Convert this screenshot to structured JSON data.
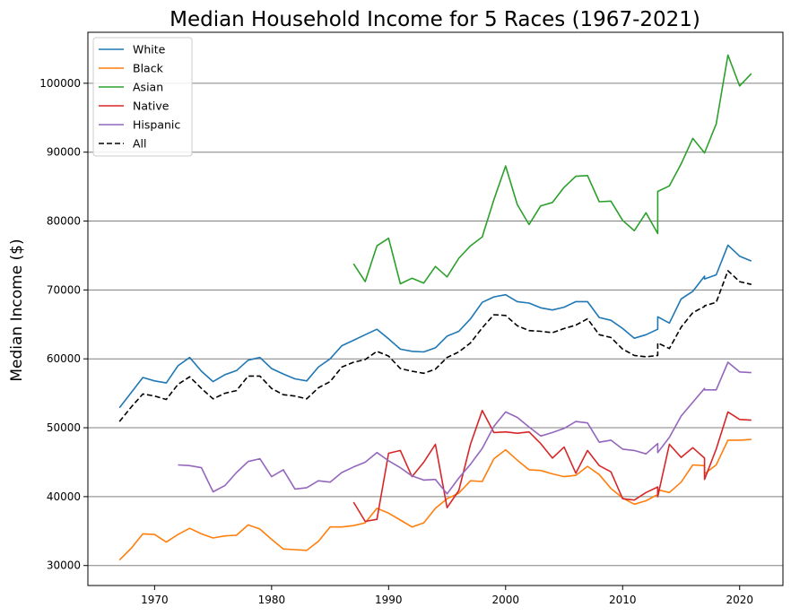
{
  "chart_data": {
    "type": "line",
    "title": "Median Household Income for 5 Races (1967-2021)",
    "xlabel": "",
    "ylabel": "Median Income ($)",
    "xlim": [
      1964.3,
      2023.7
    ],
    "ylim": [
      27100,
      107400
    ],
    "x_ticks": [
      1970,
      1980,
      1990,
      2000,
      2010,
      2020
    ],
    "y_ticks": [
      30000,
      40000,
      50000,
      60000,
      70000,
      80000,
      90000,
      100000
    ],
    "grid": "horizontal",
    "legend_position": "top-left",
    "series": [
      {
        "name": "White",
        "color": "#1f77b4",
        "dash": "solid",
        "points": [
          [
            1967,
            52900
          ],
          [
            1968,
            55100
          ],
          [
            1969,
            57300
          ],
          [
            1970,
            56800
          ],
          [
            1971,
            56500
          ],
          [
            1972,
            59000
          ],
          [
            1973,
            60200
          ],
          [
            1974,
            58200
          ],
          [
            1975,
            56700
          ],
          [
            1976,
            57700
          ],
          [
            1977,
            58300
          ],
          [
            1978,
            59800
          ],
          [
            1979,
            60200
          ],
          [
            1980,
            58600
          ],
          [
            1981,
            57800
          ],
          [
            1982,
            57100
          ],
          [
            1983,
            56800
          ],
          [
            1984,
            58800
          ],
          [
            1985,
            60000
          ],
          [
            1986,
            61900
          ],
          [
            1987,
            62700
          ],
          [
            1988,
            63500
          ],
          [
            1989,
            64300
          ],
          [
            1990,
            62900
          ],
          [
            1991,
            61400
          ],
          [
            1992,
            61100
          ],
          [
            1993,
            61000
          ],
          [
            1994,
            61600
          ],
          [
            1995,
            63300
          ],
          [
            1996,
            64000
          ],
          [
            1997,
            65800
          ],
          [
            1998,
            68200
          ],
          [
            1999,
            69000
          ],
          [
            2000,
            69300
          ],
          [
            2001,
            68300
          ],
          [
            2002,
            68100
          ],
          [
            2003,
            67400
          ],
          [
            2004,
            67100
          ],
          [
            2005,
            67500
          ],
          [
            2006,
            68300
          ],
          [
            2007,
            68300
          ],
          [
            2008,
            66000
          ],
          [
            2009,
            65600
          ],
          [
            2010,
            64400
          ],
          [
            2011,
            63000
          ],
          [
            2012,
            63500
          ],
          [
            2013,
            64300
          ],
          [
            2013,
            66100
          ],
          [
            2014,
            65200
          ],
          [
            2015,
            68700
          ],
          [
            2016,
            69800
          ],
          [
            2017,
            72000
          ],
          [
            2017,
            71600
          ],
          [
            2018,
            72200
          ],
          [
            2019,
            76500
          ],
          [
            2020,
            74900
          ],
          [
            2021,
            74200
          ]
        ]
      },
      {
        "name": "Black",
        "color": "#ff7f0e",
        "dash": "solid",
        "points": [
          [
            1967,
            30800
          ],
          [
            1968,
            32500
          ],
          [
            1969,
            34600
          ],
          [
            1970,
            34500
          ],
          [
            1971,
            33400
          ],
          [
            1972,
            34500
          ],
          [
            1973,
            35400
          ],
          [
            1974,
            34600
          ],
          [
            1975,
            34000
          ],
          [
            1976,
            34300
          ],
          [
            1977,
            34400
          ],
          [
            1978,
            35900
          ],
          [
            1979,
            35300
          ],
          [
            1980,
            33800
          ],
          [
            1981,
            32400
          ],
          [
            1982,
            32300
          ],
          [
            1983,
            32200
          ],
          [
            1984,
            33500
          ],
          [
            1985,
            35600
          ],
          [
            1986,
            35600
          ],
          [
            1987,
            35800
          ],
          [
            1988,
            36200
          ],
          [
            1989,
            38300
          ],
          [
            1990,
            37600
          ],
          [
            1991,
            36600
          ],
          [
            1992,
            35600
          ],
          [
            1993,
            36200
          ],
          [
            1994,
            38300
          ],
          [
            1995,
            39700
          ],
          [
            1996,
            40500
          ],
          [
            1997,
            42300
          ],
          [
            1998,
            42200
          ],
          [
            1999,
            45500
          ],
          [
            2000,
            46800
          ],
          [
            2001,
            45300
          ],
          [
            2002,
            43900
          ],
          [
            2003,
            43800
          ],
          [
            2004,
            43300
          ],
          [
            2005,
            42900
          ],
          [
            2006,
            43100
          ],
          [
            2007,
            44400
          ],
          [
            2008,
            43200
          ],
          [
            2009,
            41200
          ],
          [
            2010,
            39800
          ],
          [
            2011,
            38900
          ],
          [
            2012,
            39400
          ],
          [
            2013,
            40300
          ],
          [
            2013,
            41000
          ],
          [
            2014,
            40600
          ],
          [
            2015,
            42100
          ],
          [
            2016,
            44600
          ],
          [
            2017,
            44500
          ],
          [
            2017,
            43300
          ],
          [
            2018,
            44600
          ],
          [
            2019,
            48200
          ],
          [
            2020,
            48200
          ],
          [
            2021,
            48300
          ]
        ]
      },
      {
        "name": "Asian",
        "color": "#2ca02c",
        "dash": "solid",
        "points": [
          [
            1987,
            73800
          ],
          [
            1988,
            71200
          ],
          [
            1989,
            76400
          ],
          [
            1990,
            77500
          ],
          [
            1991,
            70900
          ],
          [
            1992,
            71700
          ],
          [
            1993,
            71000
          ],
          [
            1994,
            73400
          ],
          [
            1995,
            71900
          ],
          [
            1996,
            74600
          ],
          [
            1997,
            76400
          ],
          [
            1998,
            77700
          ],
          [
            1999,
            83100
          ],
          [
            2000,
            88000
          ],
          [
            2001,
            82400
          ],
          [
            2002,
            79500
          ],
          [
            2003,
            82200
          ],
          [
            2004,
            82700
          ],
          [
            2005,
            84900
          ],
          [
            2006,
            86500
          ],
          [
            2007,
            86600
          ],
          [
            2008,
            82800
          ],
          [
            2009,
            82900
          ],
          [
            2010,
            80100
          ],
          [
            2011,
            78600
          ],
          [
            2012,
            81200
          ],
          [
            2013,
            78200
          ],
          [
            2013,
            84300
          ],
          [
            2014,
            85100
          ],
          [
            2015,
            88300
          ],
          [
            2016,
            92000
          ],
          [
            2017,
            89900
          ],
          [
            2018,
            94100
          ],
          [
            2019,
            104100
          ],
          [
            2020,
            99600
          ],
          [
            2021,
            101400
          ]
        ]
      },
      {
        "name": "Native",
        "color": "#d62728",
        "dash": "solid",
        "points": [
          [
            1987,
            39200
          ],
          [
            1988,
            36400
          ],
          [
            1989,
            36700
          ],
          [
            1990,
            46300
          ],
          [
            1991,
            46700
          ],
          [
            1992,
            42900
          ],
          [
            1993,
            45000
          ],
          [
            1994,
            47600
          ],
          [
            1995,
            38400
          ],
          [
            1996,
            40900
          ],
          [
            1997,
            47600
          ],
          [
            1998,
            52500
          ],
          [
            1999,
            49300
          ],
          [
            2000,
            49400
          ],
          [
            2001,
            49200
          ],
          [
            2002,
            49400
          ],
          [
            2003,
            47700
          ],
          [
            2004,
            45600
          ],
          [
            2005,
            47200
          ],
          [
            2006,
            43400
          ],
          [
            2007,
            46700
          ],
          [
            2008,
            44500
          ],
          [
            2009,
            43600
          ],
          [
            2010,
            39700
          ],
          [
            2011,
            39500
          ],
          [
            2012,
            40600
          ],
          [
            2013,
            41400
          ],
          [
            2013,
            40000
          ],
          [
            2014,
            47600
          ],
          [
            2015,
            45700
          ],
          [
            2016,
            47100
          ],
          [
            2017,
            45600
          ],
          [
            2017,
            42500
          ],
          [
            2018,
            46900
          ],
          [
            2019,
            52300
          ],
          [
            2020,
            51200
          ],
          [
            2021,
            51100
          ]
        ]
      },
      {
        "name": "Hispanic",
        "color": "#9467bd",
        "dash": "solid",
        "points": [
          [
            1972,
            44600
          ],
          [
            1973,
            44500
          ],
          [
            1974,
            44200
          ],
          [
            1975,
            40700
          ],
          [
            1976,
            41600
          ],
          [
            1977,
            43500
          ],
          [
            1978,
            45100
          ],
          [
            1979,
            45500
          ],
          [
            1980,
            42900
          ],
          [
            1981,
            43900
          ],
          [
            1982,
            41100
          ],
          [
            1983,
            41300
          ],
          [
            1984,
            42300
          ],
          [
            1985,
            42100
          ],
          [
            1986,
            43500
          ],
          [
            1987,
            44300
          ],
          [
            1988,
            45000
          ],
          [
            1989,
            46400
          ],
          [
            1990,
            45200
          ],
          [
            1991,
            44200
          ],
          [
            1992,
            43000
          ],
          [
            1993,
            42400
          ],
          [
            1994,
            42500
          ],
          [
            1995,
            40400
          ],
          [
            1996,
            42700
          ],
          [
            1997,
            44700
          ],
          [
            1998,
            47000
          ],
          [
            1999,
            50200
          ],
          [
            2000,
            52300
          ],
          [
            2001,
            51500
          ],
          [
            2002,
            50100
          ],
          [
            2003,
            48800
          ],
          [
            2004,
            49300
          ],
          [
            2005,
            49900
          ],
          [
            2006,
            50900
          ],
          [
            2007,
            50700
          ],
          [
            2008,
            47900
          ],
          [
            2009,
            48200
          ],
          [
            2010,
            46900
          ],
          [
            2011,
            46700
          ],
          [
            2012,
            46200
          ],
          [
            2013,
            47700
          ],
          [
            2013,
            46400
          ],
          [
            2014,
            48600
          ],
          [
            2015,
            51700
          ],
          [
            2016,
            53700
          ],
          [
            2017,
            55700
          ],
          [
            2017,
            55500
          ],
          [
            2018,
            55500
          ],
          [
            2019,
            59500
          ],
          [
            2020,
            58100
          ],
          [
            2021,
            58000
          ]
        ]
      },
      {
        "name": "All",
        "color": "#000000",
        "dash": "dashed",
        "points": [
          [
            1967,
            50900
          ],
          [
            1968,
            53000
          ],
          [
            1969,
            54900
          ],
          [
            1970,
            54600
          ],
          [
            1971,
            54100
          ],
          [
            1972,
            56300
          ],
          [
            1973,
            57400
          ],
          [
            1974,
            55700
          ],
          [
            1975,
            54200
          ],
          [
            1976,
            55000
          ],
          [
            1977,
            55400
          ],
          [
            1978,
            57500
          ],
          [
            1979,
            57500
          ],
          [
            1980,
            55700
          ],
          [
            1981,
            54800
          ],
          [
            1982,
            54600
          ],
          [
            1983,
            54200
          ],
          [
            1984,
            55800
          ],
          [
            1985,
            56700
          ],
          [
            1986,
            58800
          ],
          [
            1987,
            59500
          ],
          [
            1988,
            59900
          ],
          [
            1989,
            61100
          ],
          [
            1990,
            60400
          ],
          [
            1991,
            58600
          ],
          [
            1992,
            58200
          ],
          [
            1993,
            57900
          ],
          [
            1994,
            58500
          ],
          [
            1995,
            60200
          ],
          [
            1996,
            61000
          ],
          [
            1997,
            62300
          ],
          [
            1998,
            64500
          ],
          [
            1999,
            66400
          ],
          [
            2000,
            66300
          ],
          [
            2001,
            64800
          ],
          [
            2002,
            64100
          ],
          [
            2003,
            64000
          ],
          [
            2004,
            63800
          ],
          [
            2005,
            64400
          ],
          [
            2006,
            64900
          ],
          [
            2007,
            65800
          ],
          [
            2008,
            63500
          ],
          [
            2009,
            63100
          ],
          [
            2010,
            61400
          ],
          [
            2011,
            60500
          ],
          [
            2012,
            60300
          ],
          [
            2013,
            60500
          ],
          [
            2013,
            62300
          ],
          [
            2014,
            61500
          ],
          [
            2015,
            64600
          ],
          [
            2016,
            66700
          ],
          [
            2017,
            67600
          ],
          [
            2017,
            67700
          ],
          [
            2018,
            68200
          ],
          [
            2019,
            72800
          ],
          [
            2020,
            71200
          ],
          [
            2021,
            70800
          ]
        ]
      }
    ]
  }
}
